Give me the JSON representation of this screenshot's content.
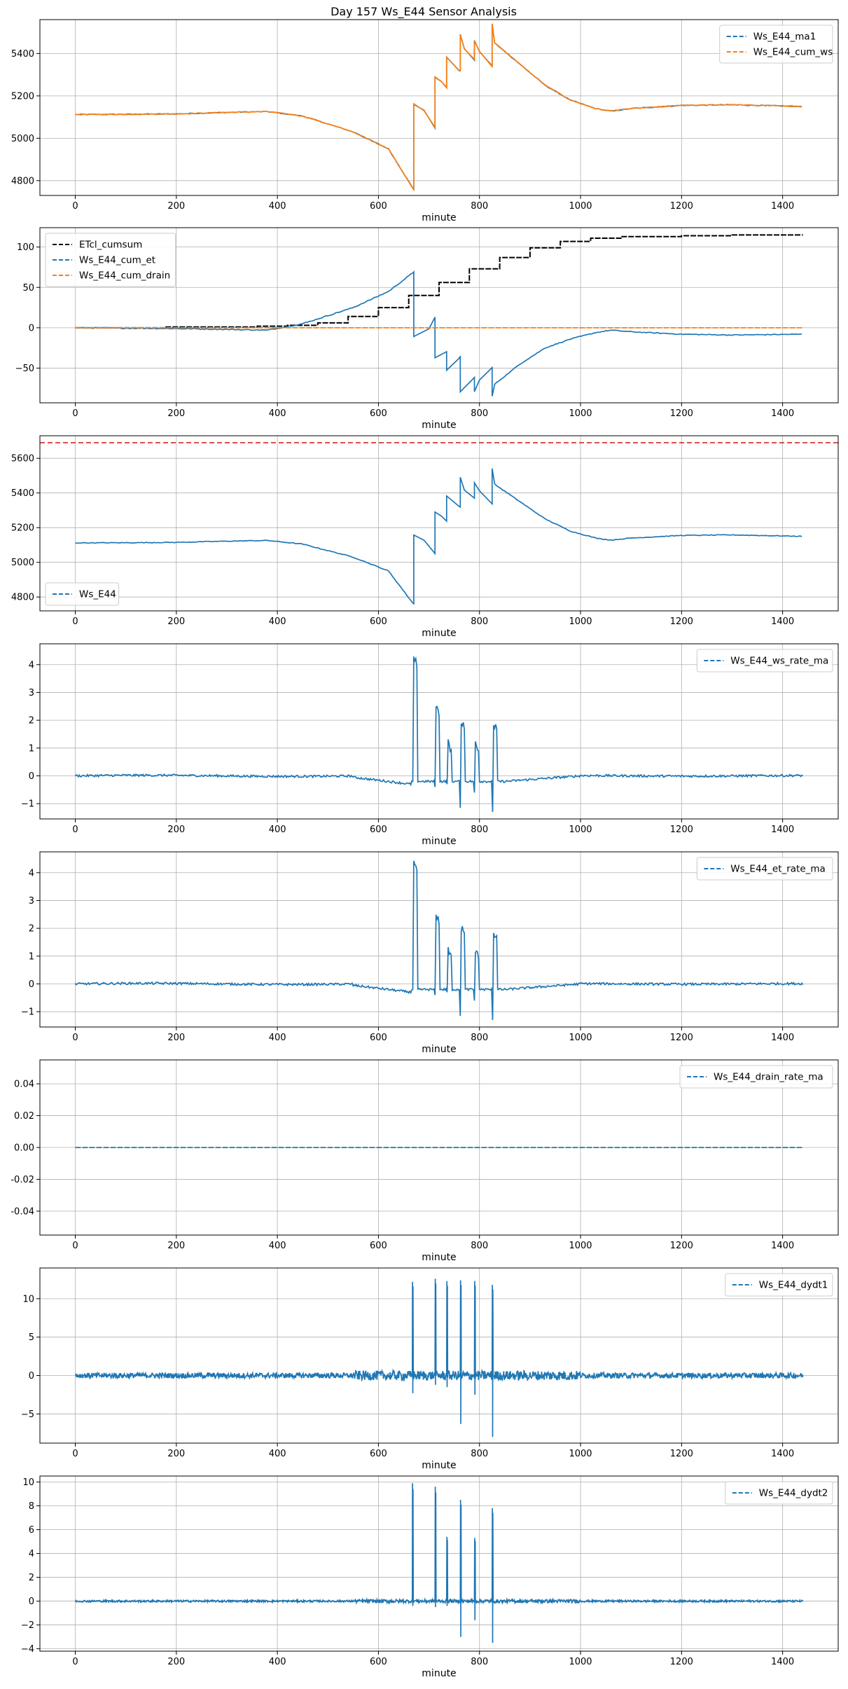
{
  "title": "Day 157 Ws_E44 Sensor Analysis",
  "colors": {
    "blue": "#1f77b4",
    "orange": "#ff7f0e",
    "black": "#000000",
    "red": "#d62728",
    "grid": "#b0b0b0"
  },
  "chart_data": [
    {
      "type": "line",
      "xlabel": "minute",
      "xlim": [
        -70,
        1510
      ],
      "ylim": [
        4730,
        5560
      ],
      "xticks": [
        0,
        200,
        400,
        600,
        800,
        1000,
        1200,
        1400
      ],
      "yticks": [
        4800,
        5000,
        5200,
        5400
      ],
      "grid": true,
      "legend": "top-right",
      "series": [
        {
          "name": "Ws_E44_ma1",
          "color": "#1f77b4",
          "dash": true,
          "shape": "ws",
          "points": [
            [
              0,
              5112
            ],
            [
              100,
              5113
            ],
            [
              200,
              5115
            ],
            [
              300,
              5122
            ],
            [
              380,
              5126
            ],
            [
              450,
              5105
            ],
            [
              550,
              5030
            ],
            [
              620,
              4950
            ],
            [
              670,
              4780
            ]
          ]
        },
        {
          "name": "Ws_E44_cum_ws",
          "color": "#ff7f0e",
          "dash": true,
          "shape": "ws",
          "points": [
            [
              0,
              5112
            ],
            [
              100,
              5113
            ],
            [
              200,
              5115
            ],
            [
              300,
              5122
            ],
            [
              380,
              5126
            ],
            [
              450,
              5105
            ],
            [
              550,
              5030
            ],
            [
              620,
              4950
            ],
            [
              670,
              4780
            ]
          ]
        }
      ]
    },
    {
      "type": "line",
      "xlabel": "minute",
      "xlim": [
        -70,
        1510
      ],
      "ylim": [
        -93,
        124
      ],
      "xticks": [
        0,
        200,
        400,
        600,
        800,
        1000,
        1200,
        1400
      ],
      "yticks": [
        -50,
        0,
        50,
        100
      ],
      "grid": true,
      "legend": "top-left",
      "series": [
        {
          "name": "ETcl_cumsum",
          "color": "#000000",
          "dash": true,
          "shape": "steps",
          "steps": [
            [
              0,
              0
            ],
            [
              180,
              1
            ],
            [
              360,
              2
            ],
            [
              420,
              3
            ],
            [
              480,
              6
            ],
            [
              540,
              14
            ],
            [
              600,
              25
            ],
            [
              660,
              40
            ],
            [
              720,
              56
            ],
            [
              780,
              73
            ],
            [
              840,
              87
            ],
            [
              900,
              99
            ],
            [
              960,
              107
            ],
            [
              1020,
              111
            ],
            [
              1080,
              113
            ],
            [
              1200,
              114
            ],
            [
              1300,
              115
            ],
            [
              1440,
              115
            ]
          ]
        },
        {
          "name": "Ws_E44_cum_et",
          "color": "#1f77b4",
          "dash": true,
          "shape": "et",
          "points": [
            [
              0,
              0
            ],
            [
              200,
              -1
            ],
            [
              300,
              -2
            ],
            [
              380,
              -3
            ],
            [
              450,
              5
            ],
            [
              550,
              25
            ],
            [
              620,
              45
            ],
            [
              670,
              68
            ]
          ]
        },
        {
          "name": "Ws_E44_cum_drain",
          "color": "#ff7f0e",
          "dash": true,
          "shape": "flat",
          "points": [
            [
              0,
              0
            ],
            [
              1440,
              0
            ]
          ]
        }
      ]
    },
    {
      "type": "line",
      "xlabel": "minute",
      "xlim": [
        -70,
        1510
      ],
      "ylim": [
        4720,
        5730
      ],
      "xticks": [
        0,
        200,
        400,
        600,
        800,
        1000,
        1200,
        1400
      ],
      "yticks": [
        4800,
        5000,
        5200,
        5400,
        5600
      ],
      "grid": true,
      "legend": "bottom-left",
      "hline": {
        "y": 5690,
        "color": "#d62728"
      },
      "series": [
        {
          "name": "Ws_E44",
          "color": "#1f77b4",
          "dash": true,
          "shape": "ws",
          "points": [
            [
              0,
              5112
            ],
            [
              100,
              5113
            ],
            [
              200,
              5115
            ],
            [
              300,
              5122
            ],
            [
              380,
              5126
            ],
            [
              450,
              5105
            ],
            [
              550,
              5030
            ],
            [
              620,
              4950
            ],
            [
              670,
              4780
            ]
          ]
        }
      ]
    },
    {
      "type": "line",
      "xlabel": "minute",
      "xlim": [
        -70,
        1510
      ],
      "ylim": [
        -1.55,
        4.75
      ],
      "xticks": [
        0,
        200,
        400,
        600,
        800,
        1000,
        1200,
        1400
      ],
      "yticks": [
        -1,
        0,
        1,
        2,
        3,
        4
      ],
      "grid": true,
      "legend": "top-right",
      "series": [
        {
          "name": "Ws_E44_ws_rate_ma",
          "color": "#1f77b4",
          "dash": true,
          "shape": "rate",
          "spikes": [
            [
              667,
              4.4,
              -0.2
            ],
            [
              712,
              2.6,
              -0.4
            ],
            [
              735,
              1.3,
              -0.3
            ],
            [
              762,
              2.1,
              -1.15
            ],
            [
              790,
              1.3,
              -0.6
            ],
            [
              825,
              2.0,
              -1.3
            ]
          ]
        }
      ]
    },
    {
      "type": "line",
      "xlabel": "minute",
      "xlim": [
        -70,
        1510
      ],
      "ylim": [
        -1.55,
        4.75
      ],
      "xticks": [
        0,
        200,
        400,
        600,
        800,
        1000,
        1200,
        1400
      ],
      "yticks": [
        -1,
        0,
        1,
        2,
        3,
        4
      ],
      "grid": true,
      "legend": "top-right",
      "series": [
        {
          "name": "Ws_E44_et_rate_ma",
          "color": "#1f77b4",
          "dash": true,
          "shape": "rate",
          "spikes": [
            [
              667,
              4.4,
              -0.2
            ],
            [
              712,
              2.6,
              -0.4
            ],
            [
              735,
              1.3,
              -0.3
            ],
            [
              762,
              2.1,
              -1.15
            ],
            [
              790,
              1.3,
              -0.6
            ],
            [
              825,
              2.0,
              -1.3
            ]
          ]
        }
      ]
    },
    {
      "type": "line",
      "xlabel": "minute",
      "xlim": [
        -70,
        1510
      ],
      "ylim": [
        -0.055,
        0.055
      ],
      "xticks": [
        0,
        200,
        400,
        600,
        800,
        1000,
        1200,
        1400
      ],
      "yticks": [
        -0.04,
        -0.02,
        0.0,
        0.02,
        0.04
      ],
      "ytick_decimals": 2,
      "grid": true,
      "legend": "top-right",
      "series": [
        {
          "name": "Ws_E44_drain_rate_ma",
          "color": "#1f77b4",
          "dash": true,
          "shape": "flat",
          "points": [
            [
              0,
              0
            ],
            [
              1440,
              0
            ]
          ]
        }
      ]
    },
    {
      "type": "line",
      "xlabel": "minute",
      "xlim": [
        -70,
        1510
      ],
      "ylim": [
        -8.8,
        14
      ],
      "xticks": [
        0,
        200,
        400,
        600,
        800,
        1000,
        1200,
        1400
      ],
      "yticks": [
        -5,
        0,
        5,
        10
      ],
      "grid": true,
      "legend": "top-right",
      "series": [
        {
          "name": "Ws_E44_dydt1",
          "color": "#1f77b4",
          "dash": true,
          "shape": "noise",
          "noise": 0.35,
          "spikes": [
            [
              667,
              12.2,
              -2.3
            ],
            [
              712,
              12.6,
              -1.2
            ],
            [
              735,
              12.3,
              -1.5
            ],
            [
              762,
              12.4,
              -6.3
            ],
            [
              790,
              12.3,
              -2.5
            ],
            [
              825,
              11.8,
              -8.0
            ]
          ]
        }
      ]
    },
    {
      "type": "line",
      "xlabel": "minute",
      "xlim": [
        -70,
        1510
      ],
      "ylim": [
        -4.2,
        10.5
      ],
      "xticks": [
        0,
        200,
        400,
        600,
        800,
        1000,
        1200,
        1400
      ],
      "yticks": [
        -4,
        -2,
        0,
        2,
        4,
        6,
        8,
        10
      ],
      "grid": true,
      "legend": "top-right",
      "series": [
        {
          "name": "Ws_E44_dydt2",
          "color": "#1f77b4",
          "dash": true,
          "shape": "noise",
          "noise": 0.08,
          "spikes": [
            [
              667,
              9.9,
              -0.4
            ],
            [
              712,
              9.6,
              -0.5
            ],
            [
              735,
              5.4,
              -0.4
            ],
            [
              762,
              8.5,
              -3.0
            ],
            [
              790,
              5.3,
              -1.6
            ],
            [
              825,
              7.8,
              -3.5
            ]
          ]
        }
      ]
    }
  ]
}
